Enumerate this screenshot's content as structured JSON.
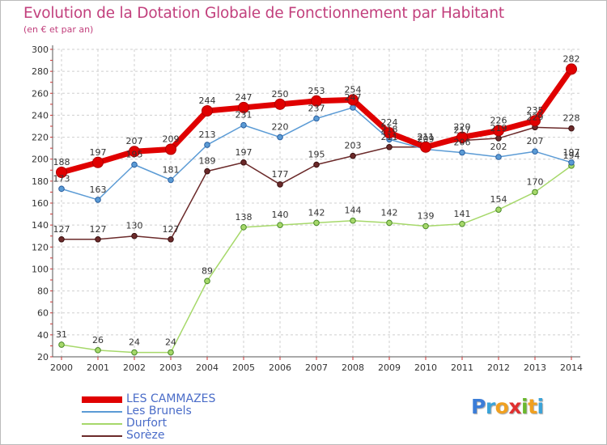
{
  "title": "Evolution de la Dotation Globale de Fonctionnement par Habitant",
  "subtitle": "(en € et par an)",
  "logo": {
    "text": "Proxiti",
    "letters": [
      {
        "ch": "P",
        "color": "#3b7dd8"
      },
      {
        "ch": "r",
        "color": "#3ba3d8"
      },
      {
        "ch": "o",
        "color": "#f0a020"
      },
      {
        "ch": "x",
        "color": "#e03030"
      },
      {
        "ch": "i",
        "color": "#6ab82e"
      },
      {
        "ch": "t",
        "color": "#f0a020"
      },
      {
        "ch": "i",
        "color": "#3ba3d8"
      }
    ]
  },
  "chart_data": {
    "type": "line",
    "title": "Evolution de la Dotation Globale de Fonctionnement par Habitant",
    "subtitle": "(en € et par an)",
    "xlabel": "",
    "ylabel": "",
    "x": [
      "2000",
      "2001",
      "2002",
      "2003",
      "2004",
      "2005",
      "2006",
      "2007",
      "2008",
      "2009",
      "2010",
      "2011",
      "2012",
      "2013",
      "2014"
    ],
    "ylim": [
      20,
      300
    ],
    "yticks": [
      20,
      40,
      60,
      80,
      100,
      120,
      140,
      160,
      180,
      200,
      220,
      240,
      260,
      280,
      300
    ],
    "grid": true,
    "legend_position": "bottom-left",
    "series": [
      {
        "name": "LES CAMMAZES",
        "color": "#e00000",
        "emphasis": true,
        "values": [
          188,
          197,
          207,
          209,
          244,
          247,
          250,
          253,
          254,
          224,
          211,
          220,
          226,
          235,
          282
        ]
      },
      {
        "name": "Les Brunels",
        "color": "#5b9bd5",
        "emphasis": false,
        "values": [
          173,
          163,
          195,
          181,
          213,
          231,
          220,
          237,
          247,
          218,
          209,
          206,
          202,
          207,
          197
        ]
      },
      {
        "name": "Durfort",
        "color": "#a6d86a",
        "emphasis": false,
        "values": [
          31,
          26,
          24,
          24,
          89,
          138,
          140,
          142,
          144,
          142,
          139,
          141,
          154,
          170,
          194
        ]
      },
      {
        "name": "Sorèze",
        "color": "#6b2a2a",
        "emphasis": false,
        "values": [
          127,
          127,
          130,
          127,
          189,
          197,
          177,
          195,
          203,
          211,
          211,
          217,
          219,
          229,
          228
        ]
      }
    ]
  }
}
